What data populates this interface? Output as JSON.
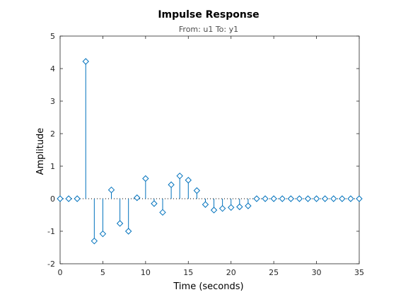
{
  "chart_data": {
    "type": "stem",
    "title": "Impulse Response",
    "subtitle": "From: u1  To: y1",
    "xlabel": "Time (seconds)",
    "ylabel": "Amplitude",
    "xlim": [
      0,
      35
    ],
    "ylim": [
      -2,
      5
    ],
    "xticks": [
      "0",
      "5",
      "10",
      "15",
      "20",
      "25",
      "30",
      "35"
    ],
    "yticks": [
      "-2",
      "-1",
      "0",
      "1",
      "2",
      "3",
      "4",
      "5"
    ],
    "grid": false,
    "marker": "diamond",
    "color": "#0072bd",
    "x": [
      0,
      1,
      2,
      3,
      4,
      5,
      6,
      7,
      8,
      9,
      10,
      11,
      12,
      13,
      14,
      15,
      16,
      17,
      18,
      19,
      20,
      21,
      22,
      23,
      24,
      25,
      26,
      27,
      28,
      29,
      30,
      31,
      32,
      33,
      34,
      35
    ],
    "y": [
      0,
      0,
      0,
      4.22,
      -1.3,
      -1.08,
      0.27,
      -0.76,
      -1.0,
      0.03,
      0.62,
      -0.15,
      -0.42,
      0.43,
      0.7,
      0.57,
      0.25,
      -0.18,
      -0.35,
      -0.3,
      -0.27,
      -0.25,
      -0.22,
      0,
      0,
      0,
      0,
      0,
      0,
      0,
      0,
      0,
      0,
      0,
      0,
      0
    ]
  }
}
